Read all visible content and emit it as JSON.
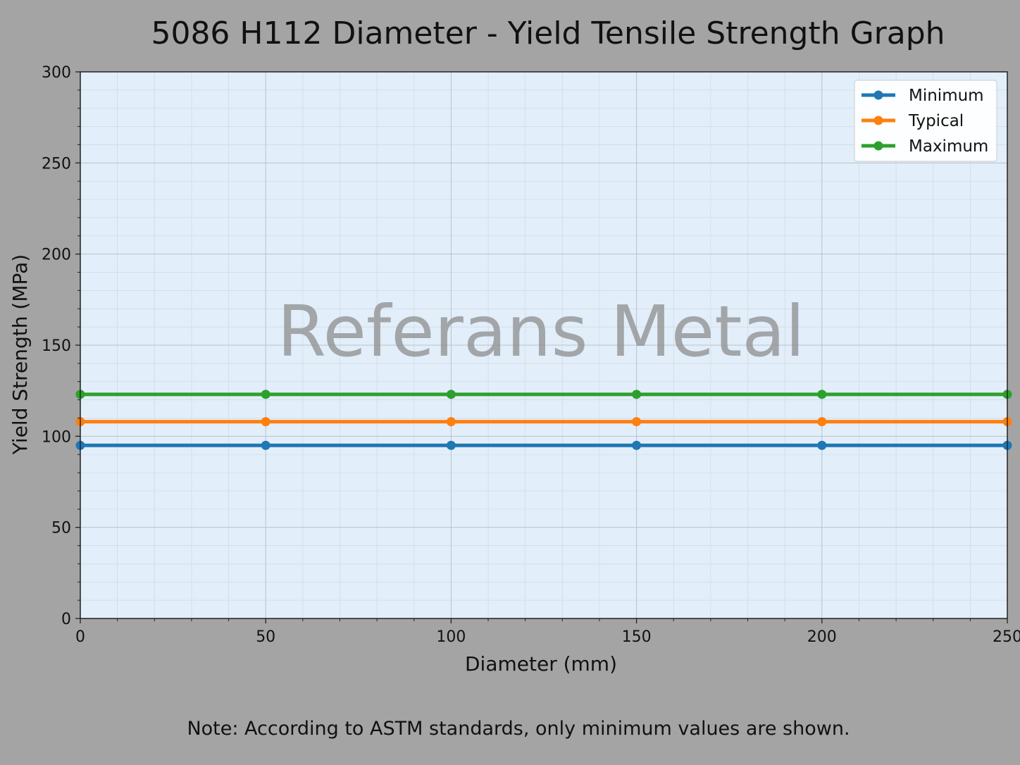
{
  "chart_data": {
    "type": "line",
    "title": "5086 H112 Diameter - Yield Tensile Strength Graph",
    "xlabel": "Diameter (mm)",
    "ylabel": "Yield Strength (MPa)",
    "x": [
      0,
      50,
      100,
      150,
      200,
      250
    ],
    "xlim": [
      0,
      250
    ],
    "ylim": [
      0,
      300
    ],
    "xticks": [
      0,
      50,
      100,
      150,
      200,
      250
    ],
    "yticks": [
      0,
      50,
      100,
      150,
      200,
      250,
      300
    ],
    "grid": true,
    "legend_position": "top-right",
    "series": [
      {
        "name": "Minimum",
        "color": "#1f77b4",
        "values": [
          95,
          95,
          95,
          95,
          95,
          95
        ]
      },
      {
        "name": "Typical",
        "color": "#ff7f0e",
        "values": [
          108,
          108,
          108,
          108,
          108,
          108
        ]
      },
      {
        "name": "Maximum",
        "color": "#2ca02c",
        "values": [
          123,
          123,
          123,
          123,
          123,
          123
        ]
      }
    ],
    "watermark": "Referans Metal",
    "note": "Note: According to ASTM standards, only minimum values are shown."
  }
}
